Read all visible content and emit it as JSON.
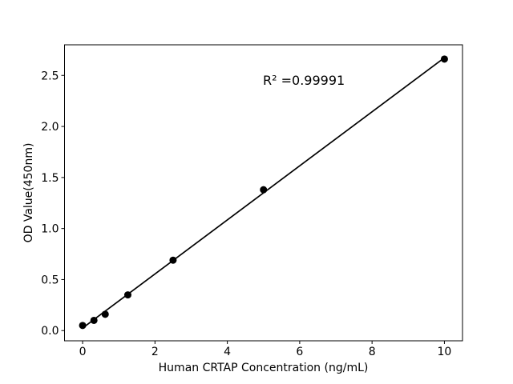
{
  "figure": {
    "background": "#ffffff"
  },
  "chart_data": {
    "type": "scatter",
    "x": [
      0,
      0.313,
      0.625,
      1.25,
      2.5,
      5,
      10
    ],
    "y": [
      0.05,
      0.1,
      0.16,
      0.35,
      0.69,
      1.38,
      2.66
    ],
    "fit_line": "linear",
    "annotation": "R² =0.99991",
    "xlabel": "Human CRTAP Concentration (ng/mL)",
    "ylabel": "OD Value(450nm)",
    "xlim": [
      -0.5,
      10.5
    ],
    "ylim": [
      -0.1,
      2.8
    ],
    "x_ticks": [
      0,
      2,
      4,
      6,
      8,
      10
    ],
    "x_tick_labels": [
      "0",
      "2",
      "4",
      "6",
      "8",
      "10"
    ],
    "y_ticks": [
      0.0,
      0.5,
      1.0,
      1.5,
      2.0,
      2.5
    ],
    "y_tick_labels": [
      "0.0",
      "0.5",
      "1.0",
      "1.5",
      "2.0",
      "2.5"
    ],
    "grid": false,
    "legend": false,
    "marker_color": "#000000",
    "line_color": "#000000",
    "axis_color": "#000000",
    "text_color": "#000000"
  }
}
